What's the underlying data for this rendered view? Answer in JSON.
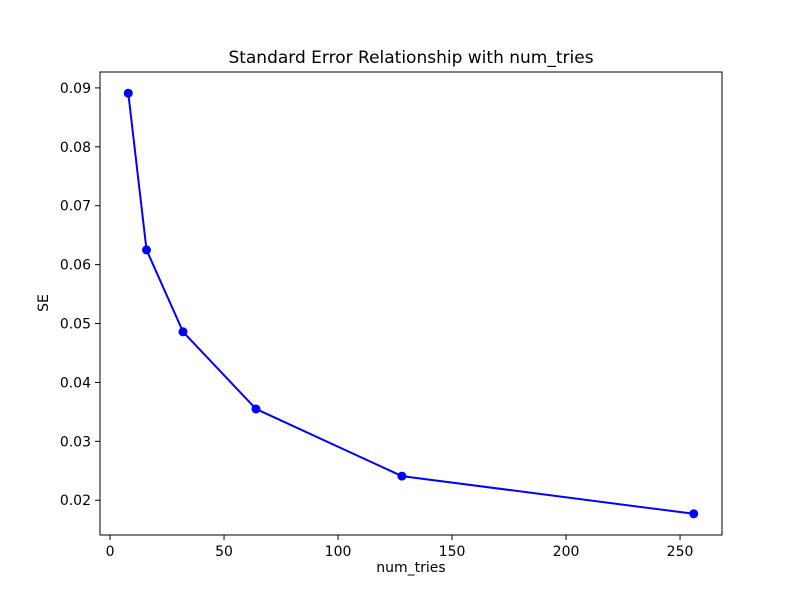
{
  "chart_data": {
    "type": "line",
    "title": "Standard Error Relationship with num_tries",
    "xlabel": "num_tries",
    "ylabel": "SE",
    "x": [
      8,
      16,
      32,
      64,
      128,
      256
    ],
    "y": [
      0.0891,
      0.0625,
      0.0486,
      0.0355,
      0.0241,
      0.0177
    ],
    "line_color": "#0000ff",
    "marker": "circle",
    "marker_color": "#0000ff",
    "axis_color": "#000000",
    "background_color": "#ffffff",
    "xlim": [
      -4.4,
      268.4
    ],
    "ylim": [
      0.0141,
      0.0927
    ],
    "xticks": [
      0,
      50,
      100,
      150,
      200,
      250
    ],
    "xtick_labels": [
      "0",
      "50",
      "100",
      "150",
      "200",
      "250"
    ],
    "yticks": [
      0.02,
      0.03,
      0.04,
      0.05,
      0.06,
      0.07,
      0.08,
      0.09
    ],
    "ytick_labels": [
      "0.02",
      "0.03",
      "0.04",
      "0.05",
      "0.06",
      "0.07",
      "0.08",
      "0.09"
    ],
    "grid": false,
    "legend_position": "none"
  }
}
